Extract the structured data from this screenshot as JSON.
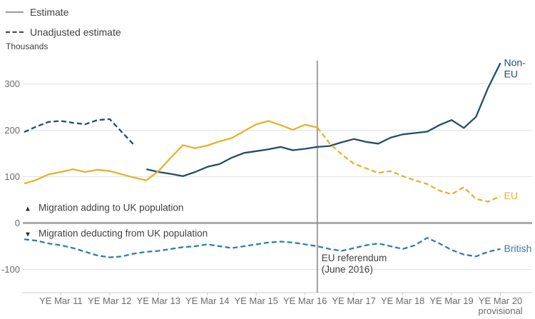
{
  "legend": {
    "items": [
      {
        "label": "Estimate",
        "line_style": "solid",
        "color": "#9B9B9B"
      },
      {
        "label": "Unadjusted estimate",
        "line_style": "dashed",
        "color": "#414042"
      }
    ]
  },
  "chart_data": {
    "type": "line",
    "title": "",
    "xlabel": "",
    "ylabel": "Thousands",
    "ylim": [
      -150,
      350
    ],
    "xlim": [
      2010.5,
      2020.9
    ],
    "grid": true,
    "legend_position": "top-left",
    "colors": {
      "gridline": "#E3E3E3",
      "zero_line": "#ACACAC",
      "axis": "#C9C9C9",
      "event_line": "#8A8A8A",
      "tick_text": "#6B6B6B",
      "text": "#414042"
    },
    "yticks": [
      {
        "v": -100,
        "label": "-100"
      },
      {
        "v": 0,
        "label": "0"
      },
      {
        "v": 100,
        "label": "100"
      },
      {
        "v": 200,
        "label": "200"
      },
      {
        "v": 300,
        "label": "300"
      }
    ],
    "xticks": [
      {
        "x": 2011.25,
        "lines": [
          "YE Mar 11"
        ]
      },
      {
        "x": 2012.25,
        "lines": [
          "YE Mar 12"
        ]
      },
      {
        "x": 2013.25,
        "lines": [
          "YE Mar 13"
        ]
      },
      {
        "x": 2014.25,
        "lines": [
          "YE Mar 14"
        ]
      },
      {
        "x": 2015.25,
        "lines": [
          "YE Mar 15"
        ]
      },
      {
        "x": 2016.25,
        "lines": [
          "YE Mar 16"
        ]
      },
      {
        "x": 2017.25,
        "lines": [
          "YE Mar 17"
        ]
      },
      {
        "x": 2018.25,
        "lines": [
          "YE Mar 18"
        ]
      },
      {
        "x": 2019.25,
        "lines": [
          "YE Mar 19"
        ]
      },
      {
        "x": 2020.25,
        "lines": [
          "YE Mar 20",
          "provisional"
        ]
      }
    ],
    "series": [
      {
        "name": "Non-EU",
        "color": "#1F4F68",
        "label_lines": [
          "Non-",
          "EU"
        ],
        "segments": [
          {
            "style": "dashed",
            "points": [
              [
                2010.5,
                196
              ],
              [
                2010.75,
                208
              ],
              [
                2011.0,
                218
              ],
              [
                2011.25,
                220
              ],
              [
                2011.5,
                216
              ],
              [
                2011.75,
                213
              ],
              [
                2012.0,
                222
              ],
              [
                2012.25,
                224
              ],
              [
                2012.5,
                196
              ],
              [
                2012.75,
                168
              ]
            ]
          },
          {
            "style": "solid",
            "points": [
              [
                2013.0,
                116
              ],
              [
                2013.25,
                110
              ],
              [
                2013.5,
                106
              ],
              [
                2013.75,
                101
              ],
              [
                2014.0,
                110
              ],
              [
                2014.25,
                121
              ],
              [
                2014.5,
                127
              ],
              [
                2014.75,
                141
              ],
              [
                2015.0,
                151
              ],
              [
                2015.25,
                155
              ],
              [
                2015.5,
                159
              ],
              [
                2015.75,
                164
              ],
              [
                2016.0,
                157
              ],
              [
                2016.25,
                160
              ],
              [
                2016.5,
                164
              ],
              [
                2016.75,
                166
              ],
              [
                2017.0,
                174
              ],
              [
                2017.25,
                181
              ],
              [
                2017.5,
                175
              ],
              [
                2017.75,
                171
              ],
              [
                2018.0,
                184
              ],
              [
                2018.25,
                191
              ],
              [
                2018.5,
                194
              ],
              [
                2018.75,
                197
              ],
              [
                2019.0,
                211
              ],
              [
                2019.25,
                222
              ],
              [
                2019.5,
                205
              ],
              [
                2019.75,
                229
              ],
              [
                2020.0,
                292
              ],
              [
                2020.25,
                345
              ]
            ]
          }
        ]
      },
      {
        "name": "EU",
        "color": "#E3B22F",
        "label_lines": [
          "EU"
        ],
        "segments": [
          {
            "style": "solid",
            "points": [
              [
                2010.5,
                85
              ],
              [
                2010.75,
                93
              ],
              [
                2011.0,
                105
              ],
              [
                2011.25,
                110
              ],
              [
                2011.5,
                116
              ],
              [
                2011.75,
                110
              ],
              [
                2012.0,
                115
              ],
              [
                2012.25,
                112
              ],
              [
                2012.5,
                105
              ],
              [
                2012.75,
                98
              ],
              [
                2013.0,
                92
              ],
              [
                2013.25,
                112
              ],
              [
                2013.5,
                141
              ],
              [
                2013.75,
                168
              ],
              [
                2014.0,
                161
              ],
              [
                2014.25,
                167
              ],
              [
                2014.5,
                176
              ],
              [
                2014.75,
                183
              ],
              [
                2015.0,
                198
              ],
              [
                2015.25,
                213
              ],
              [
                2015.5,
                220
              ],
              [
                2015.75,
                211
              ],
              [
                2016.0,
                201
              ],
              [
                2016.25,
                212
              ],
              [
                2016.5,
                206
              ]
            ]
          },
          {
            "style": "dashed",
            "points": [
              [
                2016.5,
                206
              ],
              [
                2016.75,
                172
              ],
              [
                2017.0,
                148
              ],
              [
                2017.25,
                128
              ],
              [
                2017.5,
                118
              ],
              [
                2017.75,
                108
              ],
              [
                2018.0,
                112
              ],
              [
                2018.25,
                101
              ],
              [
                2018.5,
                92
              ],
              [
                2018.75,
                84
              ],
              [
                2019.0,
                70
              ],
              [
                2019.25,
                62
              ],
              [
                2019.5,
                77
              ],
              [
                2019.75,
                52
              ],
              [
                2020.0,
                46
              ],
              [
                2020.25,
                58
              ]
            ]
          }
        ]
      },
      {
        "name": "British",
        "color": "#2F7EAC",
        "label_lines": [
          "British"
        ],
        "segments": [
          {
            "style": "dashed",
            "points": [
              [
                2010.5,
                -35
              ],
              [
                2010.75,
                -38
              ],
              [
                2011.0,
                -44
              ],
              [
                2011.25,
                -48
              ],
              [
                2011.5,
                -54
              ],
              [
                2011.75,
                -62
              ],
              [
                2012.0,
                -70
              ],
              [
                2012.25,
                -74
              ],
              [
                2012.5,
                -72
              ],
              [
                2012.75,
                -66
              ],
              [
                2013.0,
                -62
              ],
              [
                2013.25,
                -60
              ],
              [
                2013.5,
                -56
              ],
              [
                2013.75,
                -52
              ],
              [
                2014.0,
                -50
              ],
              [
                2014.25,
                -46
              ],
              [
                2014.5,
                -50
              ],
              [
                2014.75,
                -54
              ],
              [
                2015.0,
                -50
              ],
              [
                2015.25,
                -46
              ],
              [
                2015.5,
                -42
              ],
              [
                2015.75,
                -40
              ],
              [
                2016.0,
                -42
              ],
              [
                2016.25,
                -46
              ],
              [
                2016.5,
                -50
              ],
              [
                2016.75,
                -56
              ],
              [
                2017.0,
                -60
              ],
              [
                2017.25,
                -54
              ],
              [
                2017.5,
                -48
              ],
              [
                2017.75,
                -44
              ],
              [
                2018.0,
                -50
              ],
              [
                2018.25,
                -56
              ],
              [
                2018.5,
                -48
              ],
              [
                2018.75,
                -32
              ],
              [
                2019.0,
                -44
              ],
              [
                2019.25,
                -58
              ],
              [
                2019.5,
                -68
              ],
              [
                2019.75,
                -72
              ],
              [
                2020.0,
                -62
              ],
              [
                2020.25,
                -56
              ]
            ]
          }
        ]
      }
    ],
    "annotations": {
      "adding_symbol": "▲",
      "adding_label": "Migration adding to UK population",
      "deducting_symbol": "▼",
      "deducting_label": "Migration deducting from UK population",
      "referendum_lines": [
        "EU referendum",
        "(June 2016)"
      ],
      "referendum_x": 2016.5
    }
  }
}
